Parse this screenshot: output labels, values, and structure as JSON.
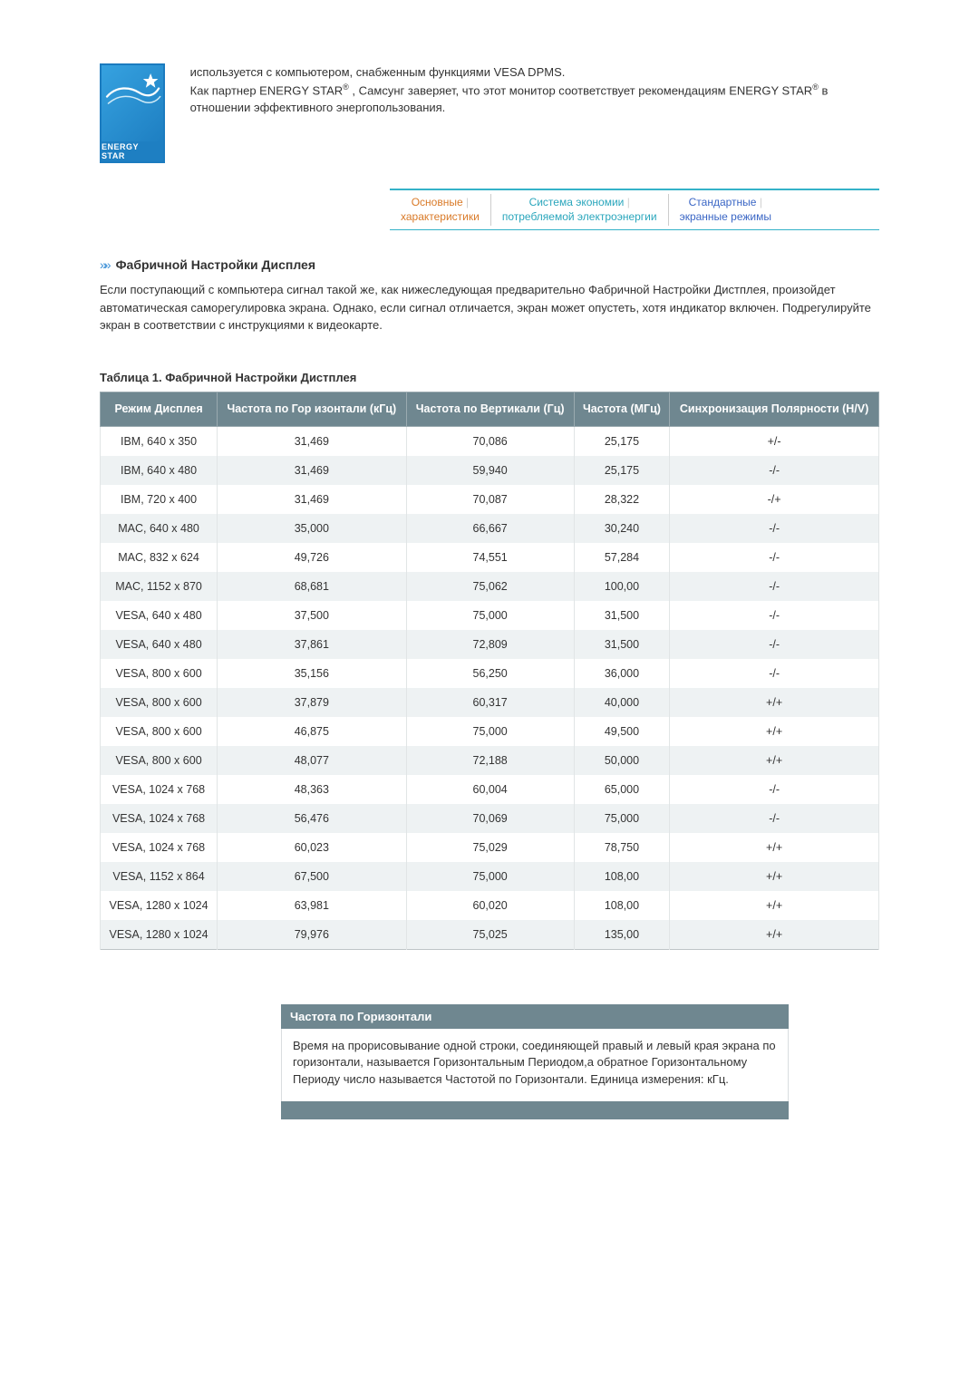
{
  "colors": {
    "accent_teal": "#34b2c8",
    "tab_orange": "#d97a28",
    "tab_teal": "#2aa6bc",
    "tab_blue": "#3a66c5",
    "table_header_bg": "#6f8790",
    "table_header_fg": "#ffffff",
    "row_alt_bg": "#eef2f3",
    "border": "#bfc5c7",
    "text": "#333333",
    "logo_blue": "#1e7fc2"
  },
  "logo": {
    "band_label": "ENERGY STAR"
  },
  "intro": {
    "line1": "используется с компьютером, снабженным функциями VESA DPMS.",
    "line2_a": "Как партнер ENERGY STAR",
    "line2_b": " , Самсунг заверяет, что этот монитор соответствует рекомендациям ENERGY STAR",
    "line2_c": " в отношении эффективного энергопользования.",
    "reg": "®"
  },
  "tabs": [
    {
      "label_line1": "Основные",
      "label_line2": "характеристики",
      "tone": "orange"
    },
    {
      "label_line1": "Система экономии",
      "label_line2": "потребляемой электроэнергии",
      "tone": "teal"
    },
    {
      "label_line1": "Стандартные",
      "label_line2": "экранные режимы",
      "tone": "blue"
    }
  ],
  "section": {
    "title": "Фабричной Настройки Дисплея",
    "paragraph": "Если поступающий с компьютера сигнал такой же, как нижеследующая предварительно Фабричной Настройки Дистплея, произойдет автоматическая саморегулировка экрана. Однако, если сигнал отличается, экран может опустеть, хотя индикатор включен. Подрегулируйте экран в соответствии с инструкциями к видеокарте."
  },
  "table": {
    "caption": "Таблица 1. Фабричной Настройки Дистплея",
    "headers": [
      "Режим Дисплея",
      "Частота по Гор изонтали (кГц)",
      "Частота по Вертикали (Гц)",
      "Частота (МГц)",
      "Синхронизация Полярности (H/V)"
    ],
    "rows": [
      [
        "IBM, 640 x 350",
        "31,469",
        "70,086",
        "25,175",
        "+/-"
      ],
      [
        "IBM, 640 x 480",
        "31,469",
        "59,940",
        "25,175",
        "-/-"
      ],
      [
        "IBM, 720 x 400",
        "31,469",
        "70,087",
        "28,322",
        "-/+"
      ],
      [
        "MAC, 640 x 480",
        "35,000",
        "66,667",
        "30,240",
        "-/-"
      ],
      [
        "MAC, 832 x 624",
        "49,726",
        "74,551",
        "57,284",
        "-/-"
      ],
      [
        "MAC, 1152 x 870",
        "68,681",
        "75,062",
        "100,00",
        "-/-"
      ],
      [
        "VESA, 640 x 480",
        "37,500",
        "75,000",
        "31,500",
        "-/-"
      ],
      [
        "VESA, 640 x 480",
        "37,861",
        "72,809",
        "31,500",
        "-/-"
      ],
      [
        "VESA, 800 x 600",
        "35,156",
        "56,250",
        "36,000",
        "-/-"
      ],
      [
        "VESA, 800 x 600",
        "37,879",
        "60,317",
        "40,000",
        "+/+"
      ],
      [
        "VESA, 800 x 600",
        "46,875",
        "75,000",
        "49,500",
        "+/+"
      ],
      [
        "VESA, 800 x 600",
        "48,077",
        "72,188",
        "50,000",
        "+/+"
      ],
      [
        "VESA, 1024 x 768",
        "48,363",
        "60,004",
        "65,000",
        "-/-"
      ],
      [
        "VESA, 1024 x 768",
        "56,476",
        "70,069",
        "75,000",
        "-/-"
      ],
      [
        "VESA, 1024 x 768",
        "60,023",
        "75,029",
        "78,750",
        "+/+"
      ],
      [
        "VESA, 1152 x 864",
        "67,500",
        "75,000",
        "108,00",
        "+/+"
      ],
      [
        "VESA, 1280 x 1024",
        "63,981",
        "60,020",
        "108,00",
        "+/+"
      ],
      [
        "VESA, 1280 x 1024",
        "79,976",
        "75,025",
        "135,00",
        "+/+"
      ]
    ]
  },
  "infobox": {
    "header": "Частота по Горизонтали",
    "body": "Время на прорисовывание одной строки, соединяющей правый и левый края экрана по горизонтали, называется Горизонтальным Периодом,а обратное Горизонтальному Периоду число называется Частотой по Горизонтали. Единица измерения: кГц."
  }
}
